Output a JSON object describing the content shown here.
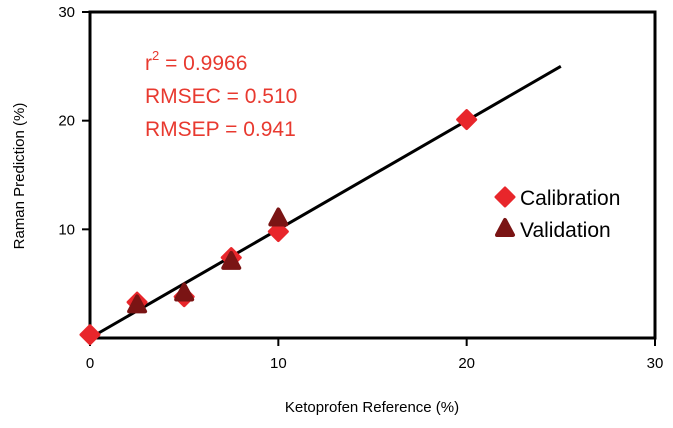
{
  "chart_data": {
    "type": "scatter",
    "xlabel": "Ketoprofen Reference (%)",
    "ylabel": "Raman Prediction (%)",
    "xlim": [
      0,
      30
    ],
    "ylim": [
      0,
      30
    ],
    "xticks": [
      "0",
      "10",
      "20",
      "30"
    ],
    "yticks": [
      "10",
      "20",
      "30"
    ],
    "grid": false,
    "legend_placement": "right-middle",
    "annotations": [
      "r",
      "2",
      " = 0.9966",
      "RMSEC = 0.510",
      "RMSEP = 0.941"
    ],
    "fit_line": {
      "x": [
        0,
        25
      ],
      "y": [
        0,
        25
      ],
      "color": "#000000"
    },
    "series": [
      {
        "name": "Calibration",
        "marker": "diamond",
        "color": "#e8262b",
        "x": [
          0,
          2.5,
          5,
          7.5,
          10,
          20
        ],
        "y": [
          0.3,
          3.3,
          3.8,
          7.4,
          9.8,
          20.1
        ]
      },
      {
        "name": "Validation",
        "marker": "triangle",
        "color": "#7a1414",
        "x": [
          2.5,
          5,
          7.5,
          10
        ],
        "y": [
          3.0,
          4.1,
          7.0,
          11.0
        ]
      }
    ],
    "annotation_color": "#e8392f"
  }
}
